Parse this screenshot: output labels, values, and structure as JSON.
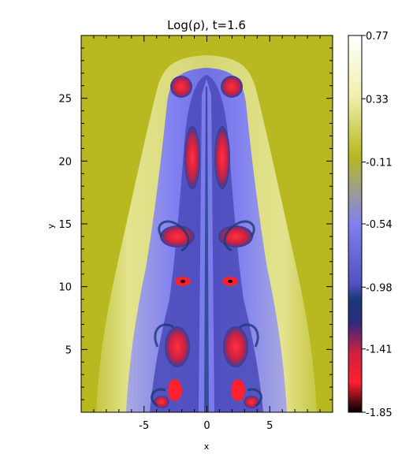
{
  "figure": {
    "title": "Log(ρ),  t=1.6",
    "background_color": "#b8b820",
    "axes": {
      "xlabel": "x",
      "ylabel": "y",
      "xlim": [
        -10,
        10
      ],
      "ylim": [
        0,
        30
      ],
      "xticks": [
        -5,
        0,
        5
      ],
      "yticks": [
        5,
        10,
        15,
        20,
        25
      ],
      "xtick_labels": [
        "-5",
        "0",
        "5"
      ],
      "ytick_labels": [
        "5",
        "10",
        "15",
        "20",
        "25"
      ]
    },
    "colorbar": {
      "labels": [
        "0.77",
        "0.33",
        "-0.11",
        "-0.54",
        "-0.98",
        "-1.41",
        "-1.85"
      ],
      "values": [
        0.77,
        0.33,
        -0.11,
        -0.54,
        -0.98,
        -1.41,
        -1.85
      ],
      "range": [
        -1.85,
        0.77
      ],
      "colors": {
        "top": "#ffffff",
        "upper": "#f0f0b0",
        "mid_high": "#b8b820",
        "mid": "#9a9a9a",
        "mid_low": "#7f7ff0",
        "low": "#1a3a7a",
        "lower": "#ff2030",
        "bottom": "#000000"
      }
    }
  }
}
